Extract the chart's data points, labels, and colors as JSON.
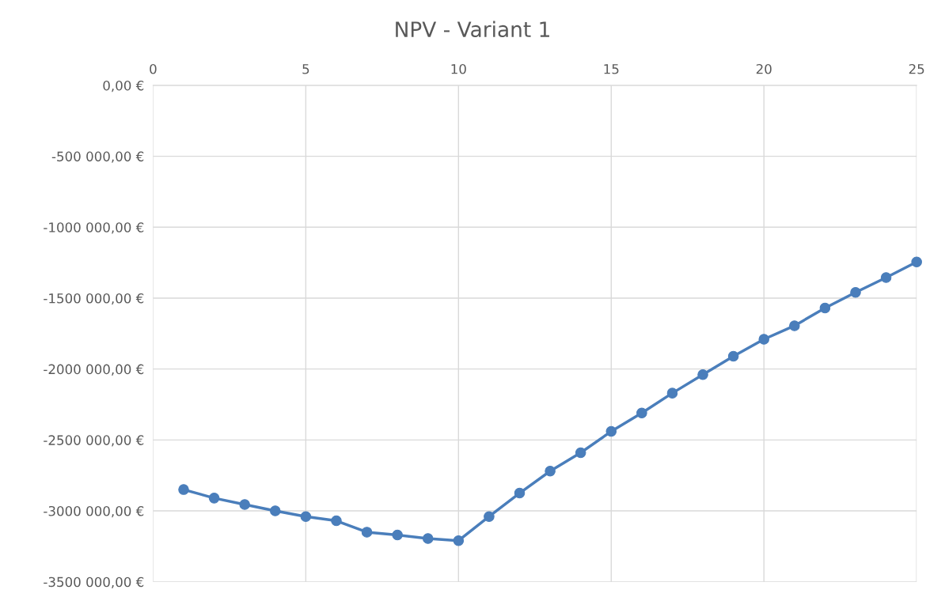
{
  "chart_data": {
    "type": "line",
    "title": "NPV - Variant 1",
    "x": [
      1,
      2,
      3,
      4,
      5,
      6,
      7,
      8,
      9,
      10,
      11,
      12,
      13,
      14,
      15,
      16,
      17,
      18,
      19,
      20,
      21,
      22,
      23,
      24,
      25
    ],
    "series": [
      {
        "color": "#4a7ebb",
        "values": [
          -2850000,
          -2910000,
          -2955000,
          -3000000,
          -3040000,
          -3070000,
          -3150000,
          -3170000,
          -3195000,
          -3210000,
          -3040000,
          -2875000,
          -2720000,
          -2590000,
          -2440000,
          -2310000,
          -2170000,
          -2040000,
          -1910000,
          -1790000,
          -1695000,
          -1570000,
          -1460000,
          -1355000,
          -1245000
        ]
      }
    ],
    "xlim": [
      0,
      25
    ],
    "xticks": [
      0,
      5,
      10,
      15,
      20,
      25
    ],
    "ylim": [
      -3500000,
      0
    ],
    "yticks": [
      {
        "value": 0,
        "label": "0,00 €"
      },
      {
        "value": -500000,
        "label": "-500 000,00 €"
      },
      {
        "value": -1000000,
        "label": "-1000 000,00 €"
      },
      {
        "value": -1500000,
        "label": "-1500 000,00 €"
      },
      {
        "value": -2000000,
        "label": "-2000 000,00 €"
      },
      {
        "value": -2500000,
        "label": "-2500 000,00 €"
      },
      {
        "value": -3000000,
        "label": "-3000 000,00 €"
      },
      {
        "value": -3500000,
        "label": "-3500 000,00 €"
      }
    ],
    "grid": true,
    "marker": "circle",
    "line_style": "solid"
  }
}
